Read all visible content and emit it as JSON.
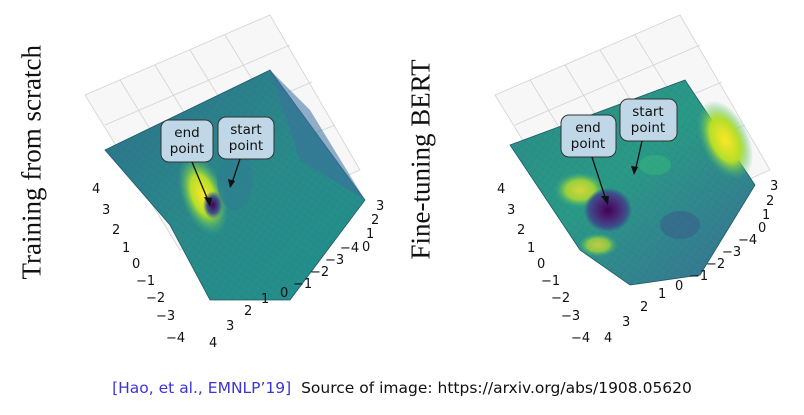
{
  "figure_left": {
    "side_label": "Training from scratch",
    "callouts": {
      "end": [
        "end",
        "point"
      ],
      "start": [
        "start",
        "point"
      ]
    },
    "ticks_left": [
      "4",
      "3",
      "2",
      "1",
      "0",
      "−1",
      "−2",
      "−3",
      "−4"
    ],
    "ticks_bottom": [
      "4",
      "3",
      "2",
      "1",
      "0",
      "−1",
      "−2",
      "−3",
      "−4"
    ],
    "ticks_right": [
      "3",
      "2",
      "1",
      "0"
    ]
  },
  "figure_right": {
    "side_label": "Fine-tuning BERT",
    "callouts": {
      "end": [
        "end",
        "point"
      ],
      "start": [
        "start",
        "point"
      ]
    },
    "ticks_left": [
      "4",
      "3",
      "2",
      "1",
      "0",
      "−1",
      "−2",
      "−3",
      "−4"
    ],
    "ticks_bottom": [
      "4",
      "3",
      "2",
      "1",
      "0",
      "−1",
      "−2",
      "−3",
      "−4"
    ],
    "ticks_right": [
      "3",
      "2",
      "1",
      "0"
    ]
  },
  "caption": {
    "citation": "[Hao, et al., EMNLP’19]",
    "source": "Source of image: https://arxiv.org/abs/1908.05620"
  },
  "colors": {
    "surface": "#2a7b8e",
    "grid": "#d4d4d4",
    "citation": "#3b35d6"
  }
}
